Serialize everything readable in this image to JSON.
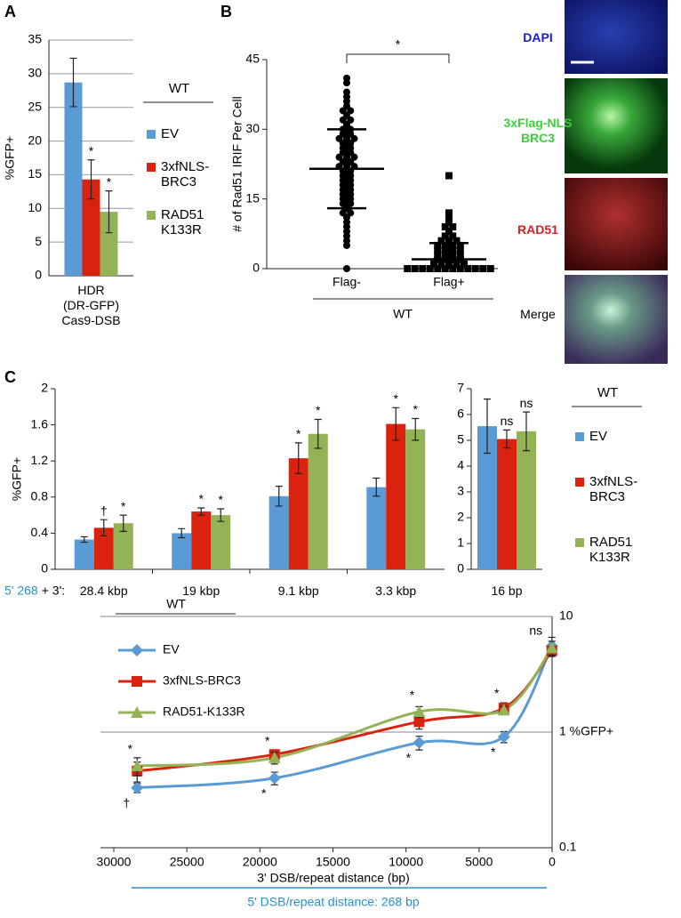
{
  "chart_data": [
    {
      "panel": "A",
      "type": "bar",
      "y_label": "%GFP+",
      "categories": [
        "HDR\n(DR-GFP)\nCas9-DSB"
      ],
      "ylim": [
        0,
        35
      ],
      "yticks": [
        0,
        5,
        10,
        15,
        20,
        25,
        30,
        35
      ],
      "grid": true,
      "legend_title": "WT",
      "series": [
        {
          "name": "EV",
          "color": "#5b9bd5",
          "values": [
            28.7
          ],
          "errors": [
            3.6
          ]
        },
        {
          "name": "3xfNLS-\nBRC3",
          "color": "#d9230f",
          "values": [
            14.3
          ],
          "errors": [
            2.9
          ],
          "marks": [
            "*"
          ]
        },
        {
          "name": "RAD51\nK133R",
          "color": "#94b356",
          "values": [
            9.5
          ],
          "errors": [
            3.1
          ],
          "marks": [
            "*"
          ]
        }
      ]
    },
    {
      "panel": "B",
      "type": "strip",
      "y_label": "# of Rad51 IRIF Per Cell",
      "categories": [
        "Flag-",
        "Flag+"
      ],
      "group_label": "WT",
      "significance": "*",
      "ylim": [
        0,
        45
      ],
      "yticks": [
        0,
        15,
        30,
        45
      ],
      "groups": [
        {
          "values": [
            41,
            40,
            38,
            37,
            36,
            35,
            34,
            34,
            33,
            32,
            32,
            31,
            30,
            30,
            29,
            29,
            28,
            28,
            28,
            27,
            27,
            26,
            26,
            25,
            25,
            24,
            24,
            24,
            23,
            23,
            22,
            22,
            22,
            21,
            21,
            20,
            20,
            19,
            19,
            18,
            18,
            17,
            17,
            16,
            16,
            15,
            15,
            14,
            14,
            13,
            12,
            12,
            11,
            10,
            9,
            8,
            7,
            6,
            5,
            0
          ],
          "mean": 21.5,
          "sd": 8.5
        },
        {
          "values": [
            20,
            12,
            11,
            10,
            9,
            9,
            8,
            7,
            7,
            6,
            6,
            6,
            5,
            5,
            5,
            5,
            4,
            4,
            4,
            4,
            3,
            3,
            3,
            3,
            2,
            2,
            2,
            2,
            1,
            1,
            1,
            1,
            1,
            0,
            0,
            0,
            0,
            0,
            0,
            0,
            0,
            0,
            0,
            0,
            0
          ],
          "mean": 2,
          "sd": 3.5
        }
      ]
    },
    {
      "panel": "C",
      "type": "bar",
      "y_label": "%GFP+",
      "category_prefix": "5' 268",
      "category_prefix_suffix": "+ 3':",
      "categories": [
        "28.4 kbp",
        "19 kbp",
        "9.1 kbp",
        "3.3 kbp"
      ],
      "ylim": [
        0,
        2
      ],
      "yticks": [
        0,
        0.4,
        0.8,
        1.2,
        1.6,
        2
      ],
      "series": [
        {
          "color": "#5b9bd5",
          "values": [
            0.33,
            0.4,
            0.81,
            0.91
          ],
          "errors": [
            0.03,
            0.05,
            0.11,
            0.1
          ]
        },
        {
          "color": "#d9230f",
          "values": [
            0.46,
            0.64,
            1.23,
            1.61
          ],
          "errors": [
            0.09,
            0.04,
            0.17,
            0.18
          ],
          "marks": [
            "†",
            "*",
            "*",
            "*"
          ]
        },
        {
          "color": "#94b356",
          "values": [
            0.51,
            0.6,
            1.5,
            1.55
          ],
          "errors": [
            0.09,
            0.07,
            0.16,
            0.12
          ],
          "marks": [
            "*",
            "*",
            "*",
            "*"
          ]
        }
      ]
    },
    {
      "type": "bar",
      "categories": [
        "16 bp"
      ],
      "ylim": [
        0,
        7
      ],
      "yticks": [
        0,
        1,
        2,
        3,
        4,
        5,
        6,
        7
      ],
      "legend_title": "WT",
      "series": [
        {
          "name": "EV",
          "color": "#5b9bd5",
          "values": [
            5.55
          ],
          "errors": [
            1.05
          ]
        },
        {
          "name": "3xfNLS-\nBRC3",
          "color": "#d9230f",
          "values": [
            5.05
          ],
          "errors": [
            0.35
          ],
          "marks": [
            "ns"
          ]
        },
        {
          "name": "RAD51\nK133R",
          "color": "#94b356",
          "values": [
            5.35
          ],
          "errors": [
            0.75
          ],
          "marks": [
            "ns"
          ]
        }
      ]
    },
    {
      "type": "line",
      "x_label": "3' DSB/repeat distance (bp)",
      "x_sublabel": "5' DSB/repeat distance: 268 bp",
      "x": [
        28400,
        19000,
        9100,
        3300,
        16
      ],
      "xlim": [
        30000,
        0
      ],
      "xticks": [
        30000,
        25000,
        20000,
        15000,
        10000,
        5000,
        0
      ],
      "ylim": [
        0.1,
        10
      ],
      "log_y": true,
      "yticks": [
        0.1,
        {
          "value": 1,
          "label": "1 %GFP+"
        },
        10
      ],
      "grid": true,
      "legend_title": "WT",
      "series": [
        {
          "name": "EV",
          "color": "#5b9bd5",
          "marker": "diamond",
          "values": [
            0.33,
            0.4,
            0.81,
            0.91,
            5.55
          ],
          "errors": [
            0.03,
            0.05,
            0.11,
            0.1,
            1.05
          ]
        },
        {
          "name": "3xfNLS-BRC3",
          "color": "#d9230f",
          "marker": "square",
          "values": [
            0.46,
            0.64,
            1.23,
            1.61,
            5.05
          ],
          "errors": [
            0.09,
            0.04,
            0.17,
            0.18,
            0.35
          ],
          "marks": [
            "†",
            "*",
            "*",
            "*",
            "ns"
          ]
        },
        {
          "name": "RAD51-K133R",
          "color": "#94b356",
          "marker": "triangle",
          "values": [
            0.51,
            0.6,
            1.5,
            1.55,
            5.35
          ],
          "errors": [
            0.09,
            0.07,
            0.16,
            0.12,
            0.75
          ],
          "marks": [
            "*",
            "*",
            "*",
            "*",
            null
          ]
        }
      ]
    }
  ],
  "micrographs": {
    "labels": [
      "DAPI",
      "3xFlag-NLS\nBRC3",
      "RAD51",
      "Merge"
    ]
  }
}
